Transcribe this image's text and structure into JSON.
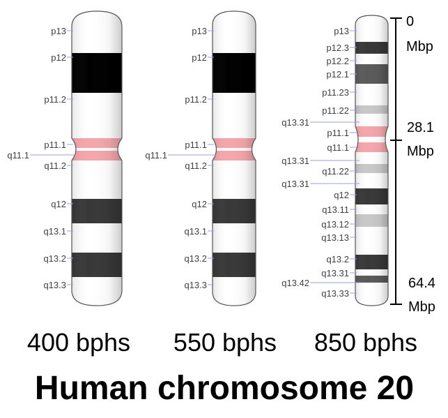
{
  "title": "Human chromosome 20",
  "colors": {
    "centromere": "#f4a6ac",
    "gpos100": "#000000",
    "gpos75": "#383838",
    "gpos50": "#5a5a5a",
    "gpos25": "#c8c8c8",
    "gneg": "#ffffff",
    "leader": "#9aa2d8"
  },
  "scale": {
    "ticks": [
      {
        "value": "0",
        "unit": "Mbp"
      },
      {
        "value": "28.1",
        "unit": "Mbp"
      },
      {
        "value": "64.4",
        "unit": "Mbp"
      }
    ]
  },
  "ideograms": [
    {
      "resolution": "400 bphs",
      "labels": [
        {
          "text": "p13",
          "side": "left"
        },
        {
          "text": "p12",
          "side": "left"
        },
        {
          "text": "p11.2",
          "side": "left"
        },
        {
          "text": "p11.1",
          "side": "left"
        },
        {
          "text": "q11.1",
          "side": "far-left"
        },
        {
          "text": "q11.2",
          "side": "left"
        },
        {
          "text": "q12",
          "side": "left"
        },
        {
          "text": "q13.1",
          "side": "left"
        },
        {
          "text": "q13.2",
          "side": "left"
        },
        {
          "text": "q13.3",
          "side": "left"
        }
      ]
    },
    {
      "resolution": "550 bphs",
      "labels": [
        {
          "text": "p13",
          "side": "left"
        },
        {
          "text": "p12",
          "side": "left"
        },
        {
          "text": "p11.2",
          "side": "left"
        },
        {
          "text": "p11.1",
          "side": "left"
        },
        {
          "text": "q11.1",
          "side": "far-left"
        },
        {
          "text": "q11.2",
          "side": "left"
        },
        {
          "text": "q12",
          "side": "left"
        },
        {
          "text": "q13.1",
          "side": "left"
        },
        {
          "text": "q13.2",
          "side": "left"
        },
        {
          "text": "q13.3",
          "side": "left"
        }
      ]
    },
    {
      "resolution": "850 bphs",
      "labels": [
        {
          "text": "p13",
          "side": "left"
        },
        {
          "text": "p12.3",
          "side": "left"
        },
        {
          "text": "p12.2",
          "side": "left"
        },
        {
          "text": "p12.1",
          "side": "left"
        },
        {
          "text": "p11.23",
          "side": "left"
        },
        {
          "text": "p11.22",
          "side": "left"
        },
        {
          "text": "q13.31",
          "side": "far-left"
        },
        {
          "text": "p11.1",
          "side": "left"
        },
        {
          "text": "q11.1",
          "side": "left"
        },
        {
          "text": "q13.31",
          "side": "far-left"
        },
        {
          "text": "q11.22",
          "side": "left"
        },
        {
          "text": "q13.31",
          "side": "far-left"
        },
        {
          "text": "q12",
          "side": "left"
        },
        {
          "text": "q13.11",
          "side": "left"
        },
        {
          "text": "q13.12",
          "side": "left"
        },
        {
          "text": "q13.13",
          "side": "left"
        },
        {
          "text": "q13.2",
          "side": "left"
        },
        {
          "text": "q13.31",
          "side": "left"
        },
        {
          "text": "q13.42",
          "side": "far-left"
        },
        {
          "text": "q13.33",
          "side": "left"
        }
      ]
    }
  ]
}
